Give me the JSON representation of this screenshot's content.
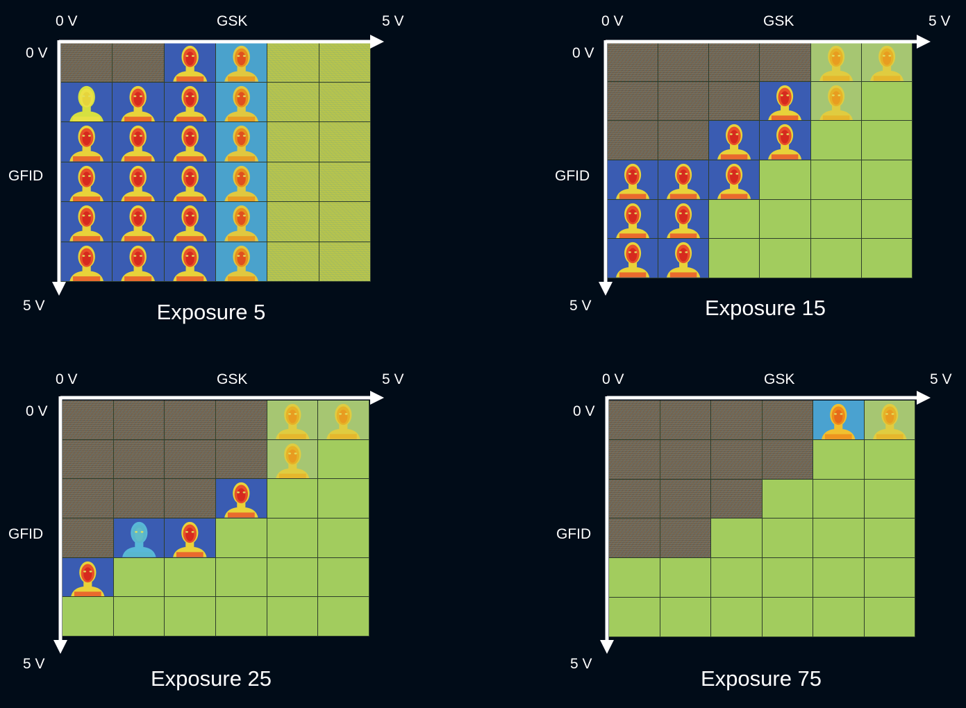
{
  "panels": [
    {
      "id": "exposure-5",
      "title": "Exposure 5",
      "x_axis": {
        "label": "GSK",
        "start": "0 V",
        "end": "5 V"
      },
      "y_axis": {
        "label": "GFID",
        "start": "0 V",
        "end": "5 V"
      },
      "grid": [
        [
          "noise",
          "noise",
          "face",
          "facelight",
          "yellownoise",
          "yellownoise"
        ],
        [
          "faceyellowhead",
          "face",
          "face",
          "facelight",
          "yellownoise",
          "yellownoise"
        ],
        [
          "face",
          "face",
          "face",
          "facelight",
          "yellownoise",
          "yellownoise"
        ],
        [
          "face",
          "face",
          "face",
          "facelight",
          "yellownoise",
          "yellownoise"
        ],
        [
          "face",
          "face",
          "face",
          "facelight",
          "yellownoise",
          "yellownoise"
        ],
        [
          "face",
          "face",
          "face",
          "facelight",
          "yellownoise",
          "yellownoise"
        ]
      ]
    },
    {
      "id": "exposure-15",
      "title": "Exposure 15",
      "x_axis": {
        "label": "GSK",
        "start": "0 V",
        "end": "5 V"
      },
      "y_axis": {
        "label": "GFID",
        "start": "0 V",
        "end": "5 V"
      },
      "grid": [
        [
          "noise",
          "noise",
          "noise",
          "noise",
          "faceyellow",
          "faceyellow"
        ],
        [
          "noise",
          "noise",
          "noise",
          "face",
          "faceyellow",
          "sat"
        ],
        [
          "noise",
          "noise",
          "face",
          "face",
          "sat",
          "sat"
        ],
        [
          "face",
          "face",
          "face",
          "sat",
          "sat",
          "sat"
        ],
        [
          "face",
          "face",
          "sat",
          "sat",
          "sat",
          "sat"
        ],
        [
          "face",
          "face",
          "sat",
          "sat",
          "sat",
          "sat"
        ]
      ]
    },
    {
      "id": "exposure-25",
      "title": "Exposure 25",
      "x_axis": {
        "label": "GSK",
        "start": "0 V",
        "end": "5 V"
      },
      "y_axis": {
        "label": "GFID",
        "start": "0 V",
        "end": "5 V"
      },
      "grid": [
        [
          "noise",
          "noise",
          "noise",
          "noise",
          "faceyellow",
          "faceyellow"
        ],
        [
          "noise",
          "noise",
          "noise",
          "noise",
          "faceyellow",
          "sat"
        ],
        [
          "noise",
          "noise",
          "noise",
          "face",
          "sat",
          "sat"
        ],
        [
          "noise",
          "facelightblue",
          "face",
          "sat",
          "sat",
          "sat"
        ],
        [
          "face",
          "sat",
          "sat",
          "sat",
          "sat",
          "sat"
        ],
        [
          "sat",
          "sat",
          "sat",
          "sat",
          "sat",
          "sat"
        ]
      ]
    },
    {
      "id": "exposure-75",
      "title": "Exposure 75",
      "x_axis": {
        "label": "GSK",
        "start": "0 V",
        "end": "5 V"
      },
      "y_axis": {
        "label": "GFID",
        "start": "0 V",
        "end": "5 V"
      },
      "grid": [
        [
          "noise",
          "noise",
          "noise",
          "noise",
          "faceorange",
          "faceyellow"
        ],
        [
          "noise",
          "noise",
          "noise",
          "noise",
          "sat",
          "sat"
        ],
        [
          "noise",
          "noise",
          "noise",
          "sat",
          "sat",
          "sat"
        ],
        [
          "noise",
          "noise",
          "sat",
          "sat",
          "sat",
          "sat"
        ],
        [
          "sat",
          "sat",
          "sat",
          "sat",
          "sat",
          "sat"
        ],
        [
          "sat",
          "sat",
          "sat",
          "sat",
          "sat",
          "sat"
        ]
      ]
    }
  ]
}
